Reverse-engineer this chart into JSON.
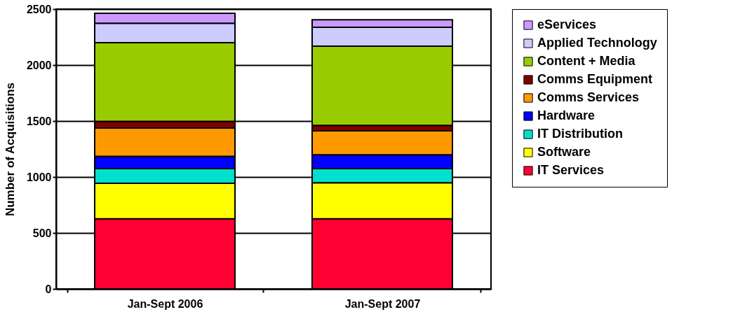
{
  "chart_data": {
    "type": "bar",
    "stacked": true,
    "ylabel": "Number of Acquisitions",
    "categories": [
      "Jan-Sept 2006",
      "Jan-Sept 2007"
    ],
    "series": [
      {
        "name": "IT Services",
        "color": "#ff0033",
        "values": [
          626,
          626
        ]
      },
      {
        "name": "Software",
        "color": "#ffff00",
        "values": [
          318,
          322
        ]
      },
      {
        "name": "IT Distribution",
        "color": "#00e0cc",
        "values": [
          131,
          127
        ]
      },
      {
        "name": "Hardware",
        "color": "#0000ff",
        "values": [
          109,
          123
        ]
      },
      {
        "name": "Comms Services",
        "color": "#ff9900",
        "values": [
          254,
          215
        ]
      },
      {
        "name": "Comms Equipment",
        "color": "#800000",
        "values": [
          59,
          48
        ]
      },
      {
        "name": "Content + Media",
        "color": "#99cc00",
        "values": [
          703,
          708
        ]
      },
      {
        "name": "Applied Technology",
        "color": "#ccccff",
        "values": [
          174,
          169
        ]
      },
      {
        "name": "eServices",
        "color": "#cc99ff",
        "values": [
          89,
          67
        ]
      }
    ],
    "ylim": [
      0,
      2500
    ],
    "yticks": [
      0,
      500,
      1000,
      1500,
      2000,
      2500
    ],
    "grid": "y",
    "legend": "right"
  }
}
